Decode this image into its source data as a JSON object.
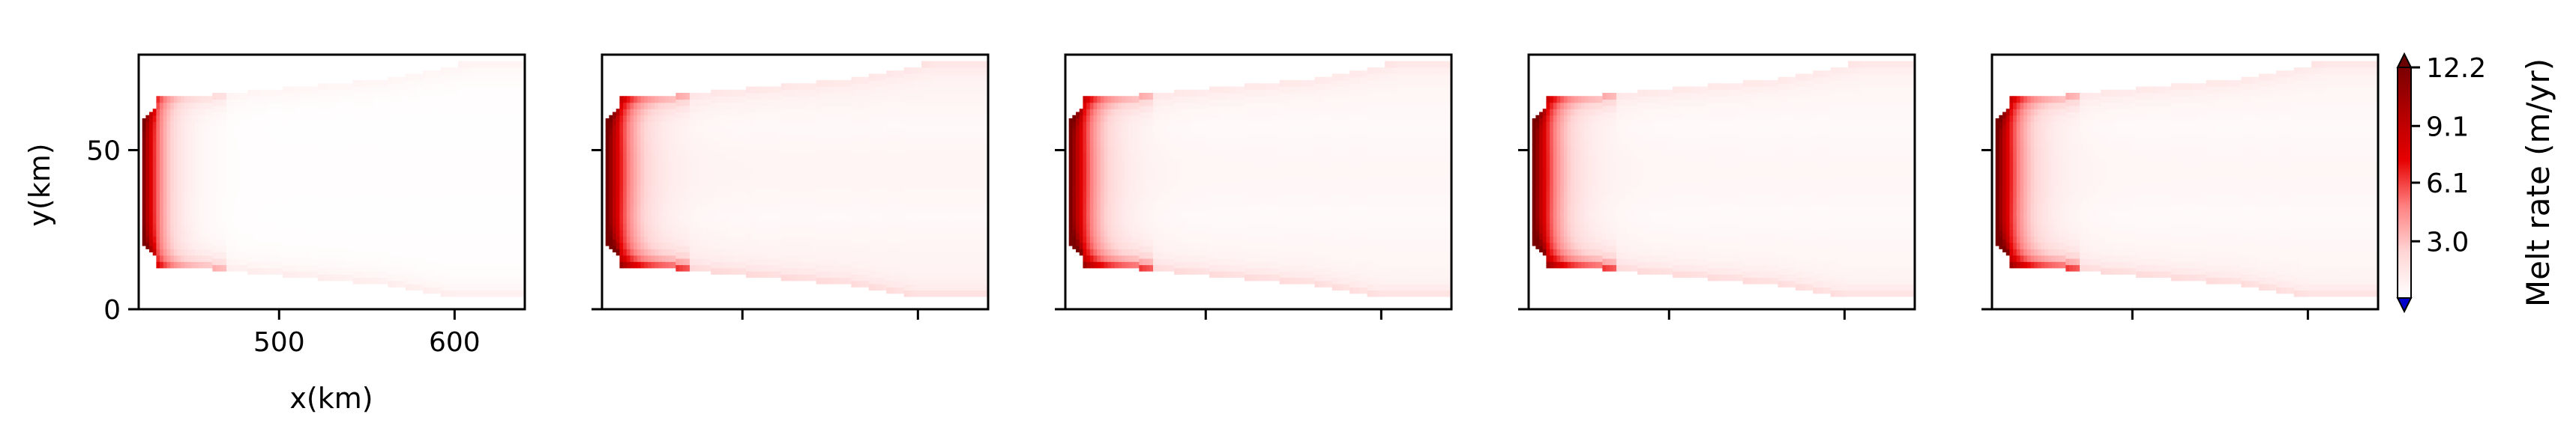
{
  "chart_data": {
    "type": "heatmap",
    "panel_count": 5,
    "xlabel": "x(km)",
    "ylabel": "y(km)",
    "xlim": [
      420,
      640
    ],
    "ylim": [
      0,
      80
    ],
    "x_ticks": [
      500,
      600
    ],
    "x_tick_labels": [
      "500",
      "600"
    ],
    "y_ticks": [
      0,
      50
    ],
    "y_tick_labels": [
      "0",
      "50"
    ],
    "domain_x_start": 420,
    "ice_front_x_end": 640,
    "panels": [
      {
        "front_band_x": [
          422,
          428
        ],
        "max_melt": 11.5,
        "interior_melt": 0.1,
        "front_decay_km": 30,
        "edge_melt": 1.2
      },
      {
        "front_band_x": [
          422,
          432
        ],
        "max_melt": 12.2,
        "interior_melt": 0.6,
        "front_decay_km": 35,
        "edge_melt": 2.0
      },
      {
        "front_band_x": [
          422,
          432
        ],
        "max_melt": 12.2,
        "interior_melt": 0.5,
        "front_decay_km": 35,
        "edge_melt": 2.0
      },
      {
        "front_band_x": [
          422,
          432
        ],
        "max_melt": 12.2,
        "interior_melt": 0.5,
        "front_decay_km": 35,
        "edge_melt": 2.0
      },
      {
        "front_band_x": [
          422,
          432
        ],
        "max_melt": 12.2,
        "interior_melt": 0.5,
        "front_decay_km": 35,
        "edge_melt": 2.0
      }
    ],
    "colorbar": {
      "label": "Melt rate (m/yr)",
      "ticks": [
        3.0,
        6.1,
        9.1,
        12.2
      ],
      "tick_labels": [
        "3.0",
        "6.1",
        "9.1",
        "12.2"
      ],
      "range": [
        0,
        12.2
      ],
      "colormap": [
        "#ffffff",
        "#ffd5d5",
        "#ff8080",
        "#e60000",
        "#b30000",
        "#7a0000"
      ],
      "over_color": "#6b0000",
      "under_color": "#0000cc"
    }
  }
}
